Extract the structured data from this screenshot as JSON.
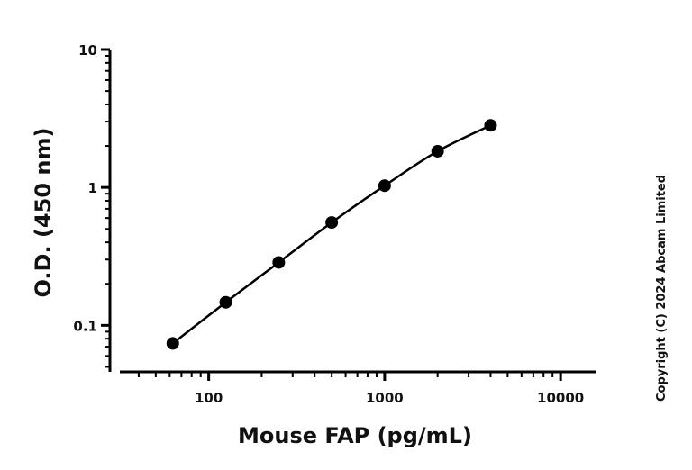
{
  "chart_data": {
    "type": "scatter",
    "xscale": "log",
    "yscale": "log",
    "xlim": [
      31.25,
      16000
    ],
    "ylim": [
      0.046,
      10
    ],
    "xticks": [
      100,
      1000,
      10000
    ],
    "xtick_labels": [
      "100",
      "1000",
      "10000"
    ],
    "yticks": [
      0.1,
      1,
      10
    ],
    "ytick_labels": [
      "0.1",
      "1",
      "10"
    ],
    "xlabel": "Mouse FAP (pg/mL)",
    "ylabel": "O.D. (450 nm)",
    "grid": false,
    "series": [
      {
        "x": [
          62.5,
          125,
          250,
          500,
          1000,
          2000,
          4000
        ],
        "y": [
          0.074,
          0.147,
          0.286,
          0.557,
          1.03,
          1.83,
          2.82
        ],
        "fit_line": true
      }
    ],
    "color": "#000000"
  },
  "copyright": "Copyright (C) 2024 Abcam Limited"
}
